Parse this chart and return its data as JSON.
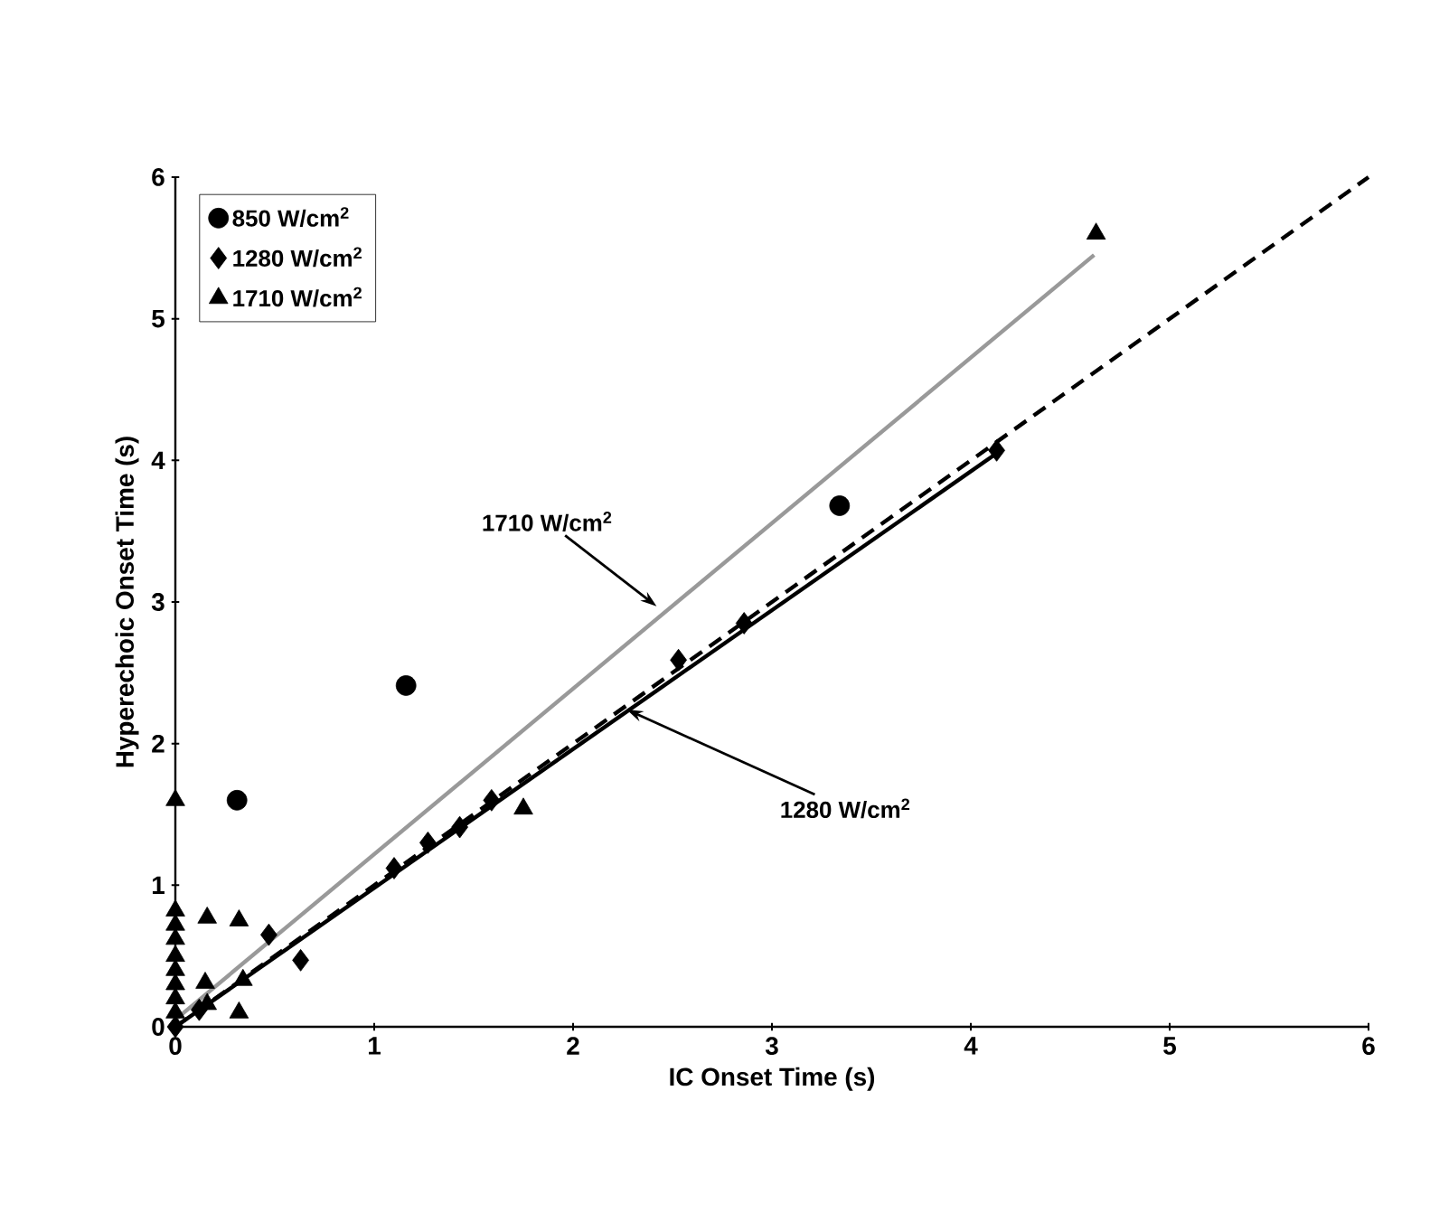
{
  "chart_data": {
    "type": "scatter",
    "xlabel": "IC Onset Time (s)",
    "ylabel": "Hyperechoic Onset Time  (s)",
    "xlim": [
      0,
      6
    ],
    "ylim": [
      0,
      6
    ],
    "xticks": [
      0,
      1,
      2,
      3,
      4,
      5,
      6
    ],
    "yticks": [
      0,
      1,
      2,
      3,
      4,
      5,
      6
    ],
    "legend": "top left",
    "grid": false,
    "series": [
      {
        "name": "850 W/cm$^{2}$",
        "color": "#000000",
        "marker": "circle",
        "x": [
          0.31,
          1.16,
          3.34
        ],
        "values": [
          1.6,
          2.41,
          3.68
        ]
      },
      {
        "name": "1280 W/cm$^{2}$",
        "color": "#000000",
        "marker": "diamond",
        "x": [
          0,
          0.12,
          0.47,
          0.63,
          1.1,
          1.27,
          1.43,
          1.59,
          2.53,
          2.86,
          4.13
        ],
        "values": [
          0,
          0.12,
          0.65,
          0.47,
          1.12,
          1.3,
          1.41,
          1.6,
          2.59,
          2.85,
          4.07
        ]
      },
      {
        "name": "1710 W/cm$^{2}$",
        "color": "#000000",
        "marker": "triangle",
        "x": [
          0,
          0,
          0,
          0,
          0,
          0,
          0,
          0,
          0,
          0.16,
          0.32,
          0.15,
          0.16,
          0.34,
          0.32,
          1.75,
          4.63
        ],
        "values": [
          1.6,
          0.82,
          0.72,
          0.62,
          0.5,
          0.4,
          0.3,
          0.2,
          0.1,
          0.77,
          0.75,
          0.31,
          0.16,
          0.33,
          0.1,
          1.54,
          5.6
        ]
      },
      {
        "type": "line",
        "color": "#999999",
        "line_style": "solid",
        "x": [
          0,
          4.62
        ],
        "values": [
          0.05,
          5.45
        ]
      },
      {
        "type": "line",
        "color": "#000000",
        "line_style": "solid",
        "x": [
          0,
          4.13
        ],
        "values": [
          0,
          4.05
        ]
      },
      {
        "type": "line",
        "color": "#000000",
        "line_style": "dashed",
        "x": [
          0,
          6
        ],
        "values": [
          0,
          6
        ]
      }
    ],
    "annotations": [
      {
        "text": "1710 W/cm$^{2}$",
        "x": 2.42,
        "y": 2.97
      },
      {
        "text": "1280 W/cm$^{2}$",
        "x": 2.27,
        "y": 2.24
      }
    ]
  }
}
